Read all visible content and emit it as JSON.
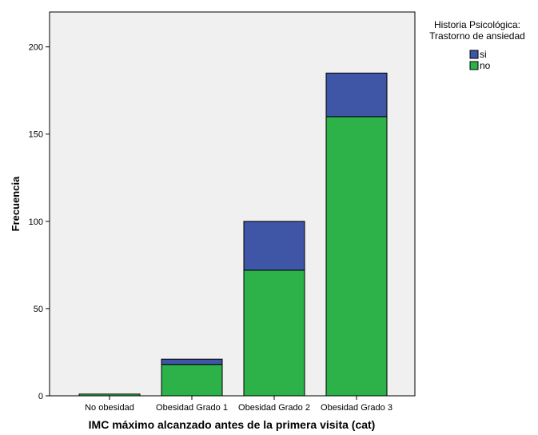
{
  "chart_data": {
    "type": "bar",
    "stacked": true,
    "categories": [
      "No obesidad",
      "Obesidad Grado 1",
      "Obesidad Grado 2",
      "Obesidad Grado 3"
    ],
    "series": [
      {
        "name": "no",
        "values": [
          1,
          18,
          72,
          160
        ],
        "color": "#2db24a"
      },
      {
        "name": "si",
        "values": [
          0,
          3,
          28,
          25
        ],
        "color": "#3f55a6"
      }
    ],
    "xlabel": "IMC máximo alcanzado antes de la primera visita (cat)",
    "ylabel": "Frecuencia",
    "ylim": [
      0,
      220
    ],
    "yticks": [
      0,
      50,
      100,
      150,
      200
    ],
    "grid": false,
    "plot_background": "#f0f0f0",
    "legend": {
      "title_line1": "Historia Psicológica:",
      "title_line2": "Trastorno de ansiedad",
      "entries": [
        "si",
        "no"
      ],
      "placement": "top-right"
    }
  }
}
